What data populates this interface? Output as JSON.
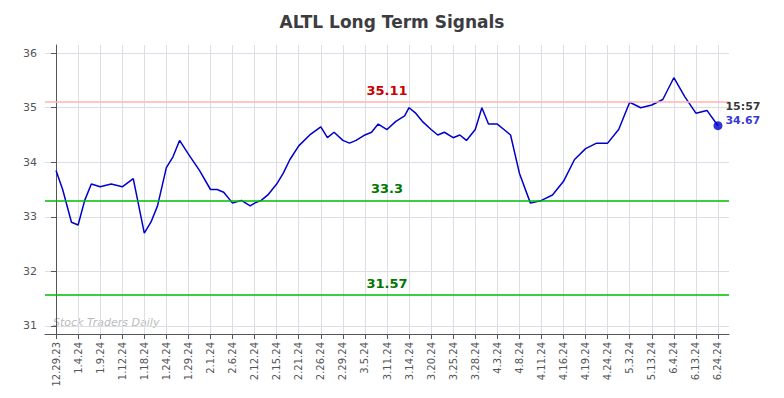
{
  "chart_data": {
    "type": "line",
    "title": "ALTL Long Term Signals",
    "x": [
      0,
      0.3,
      0.7,
      1,
      1.3,
      1.6,
      2,
      2.5,
      3,
      3.5,
      4,
      4.3,
      4.6,
      5,
      5.3,
      5.6,
      6,
      6.5,
      7,
      7.3,
      7.6,
      8,
      8.4,
      8.8,
      9,
      9.3,
      9.6,
      9.9,
      10,
      10.3,
      10.6,
      11,
      11.5,
      12,
      12.3,
      12.6,
      13,
      13.3,
      13.6,
      14,
      14.3,
      14.6,
      15,
      15.4,
      15.8,
      16,
      16.3,
      16.6,
      17,
      17.3,
      17.6,
      18,
      18.3,
      18.6,
      19,
      19.3,
      19.6,
      20,
      20.3,
      20.6,
      21,
      21.5,
      22,
      22.5,
      23,
      23.5,
      24,
      24.5,
      25,
      25.5,
      26,
      26.5,
      27,
      27.5,
      28,
      28.5,
      29,
      29.5,
      30
    ],
    "values": [
      33.85,
      33.5,
      32.9,
      32.85,
      33.3,
      33.6,
      33.55,
      33.6,
      33.55,
      33.7,
      32.7,
      32.9,
      33.2,
      33.9,
      34.1,
      34.4,
      34.15,
      33.85,
      33.5,
      33.5,
      33.45,
      33.25,
      33.3,
      33.2,
      33.25,
      33.3,
      33.4,
      33.55,
      33.6,
      33.8,
      34.05,
      34.3,
      34.5,
      34.65,
      34.45,
      34.55,
      34.4,
      34.35,
      34.4,
      34.5,
      34.55,
      34.7,
      34.6,
      34.75,
      34.85,
      35.0,
      34.9,
      34.75,
      34.6,
      34.5,
      34.55,
      34.45,
      34.5,
      34.4,
      34.6,
      35.0,
      34.7,
      34.7,
      34.6,
      34.5,
      33.8,
      33.25,
      33.3,
      33.4,
      33.65,
      34.05,
      34.25,
      34.35,
      34.35,
      34.6,
      35.1,
      35.0,
      35.05,
      35.15,
      35.55,
      35.2,
      34.9,
      34.95,
      34.67
    ],
    "color": "#0000cc",
    "xlim": [
      -0.5,
      30.5
    ],
    "xticks": [
      {
        "value": 0,
        "label": "12.29.23"
      },
      {
        "value": 1,
        "label": "1.4.24"
      },
      {
        "value": 2,
        "label": "1.9.24"
      },
      {
        "value": 3,
        "label": "1.12.24"
      },
      {
        "value": 4,
        "label": "1.18.24"
      },
      {
        "value": 5,
        "label": "1.24.24"
      },
      {
        "value": 6,
        "label": "1.29.24"
      },
      {
        "value": 7,
        "label": "2.1.24"
      },
      {
        "value": 8,
        "label": "2.6.24"
      },
      {
        "value": 9,
        "label": "2.12.24"
      },
      {
        "value": 10,
        "label": "2.15.24"
      },
      {
        "value": 11,
        "label": "2.21.24"
      },
      {
        "value": 12,
        "label": "2.26.24"
      },
      {
        "value": 13,
        "label": "2.29.24"
      },
      {
        "value": 14,
        "label": "3.5.24"
      },
      {
        "value": 15,
        "label": "3.11.24"
      },
      {
        "value": 16,
        "label": "3.14.24"
      },
      {
        "value": 17,
        "label": "3.20.24"
      },
      {
        "value": 18,
        "label": "3.25.24"
      },
      {
        "value": 19,
        "label": "3.28.24"
      },
      {
        "value": 20,
        "label": "4.3.24"
      },
      {
        "value": 21,
        "label": "4.8.24"
      },
      {
        "value": 22,
        "label": "4.11.24"
      },
      {
        "value": 23,
        "label": "4.16.24"
      },
      {
        "value": 24,
        "label": "4.19.24"
      },
      {
        "value": 25,
        "label": "4.24.24"
      },
      {
        "value": 26,
        "label": "5.3.24"
      },
      {
        "value": 27,
        "label": "5.13.24"
      },
      {
        "value": 28,
        "label": "6.4.24"
      },
      {
        "value": 29,
        "label": "6.13.24"
      },
      {
        "value": 30,
        "label": "6.24.24"
      }
    ],
    "ylim": [
      30.85,
      36.15
    ],
    "yticks": [
      31,
      32,
      33,
      34,
      35,
      36
    ],
    "grid": true,
    "hlines": [
      {
        "value": 35.11,
        "color": "#ffb3b3",
        "label": "35.11",
        "label_color": "#cc0000"
      },
      {
        "value": 33.3,
        "color": "#00bb00",
        "label": "33.3",
        "label_color": "#007700"
      },
      {
        "value": 31.57,
        "color": "#00bb00",
        "label": "31.57",
        "label_color": "#007700"
      }
    ],
    "annotations": [
      {
        "text": "15:57",
        "color": "#000000"
      },
      {
        "text": "34.67",
        "color": "#0000cc"
      }
    ],
    "watermark": {
      "text": "Stock Traders Daily",
      "color": "#bbbbbb"
    }
  }
}
